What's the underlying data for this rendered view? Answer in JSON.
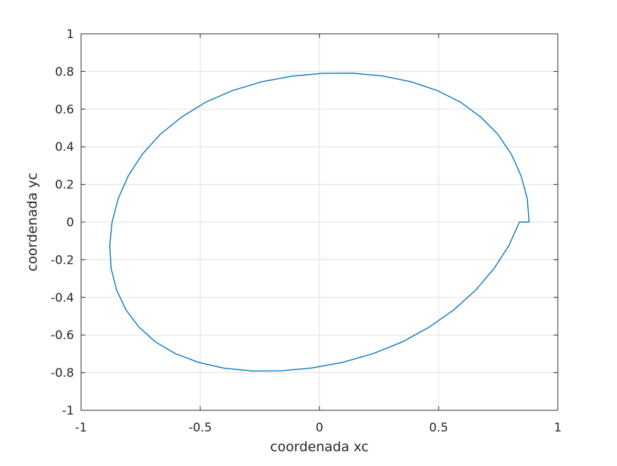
{
  "chart_data": {
    "type": "line",
    "title": "",
    "xlabel": "coordenada xc",
    "ylabel": "coordenada yc",
    "xlim": [
      -1,
      1
    ],
    "ylim": [
      -1,
      1
    ],
    "xticks": [
      -1,
      -0.5,
      0,
      0.5,
      1
    ],
    "xtick_labels": [
      "-1",
      "-0.5",
      "0",
      "0.5",
      "1"
    ],
    "yticks": [
      -1,
      -0.8,
      -0.6,
      -0.4,
      -0.2,
      0,
      0.2,
      0.4,
      0.6,
      0.8,
      1
    ],
    "ytick_labels": [
      "-1",
      "-0.8",
      "-0.6",
      "-0.4",
      "-0.2",
      "0",
      "0.2",
      "0.4",
      "0.6",
      "0.8",
      "1"
    ],
    "grid": true,
    "box": true,
    "series": [
      {
        "color": "#0072bd",
        "x": [
          0.88,
          0.872,
          0.846,
          0.805,
          0.749,
          0.677,
          0.592,
          0.494,
          0.385,
          0.266,
          0.14,
          0.012,
          -0.117,
          -0.243,
          -0.364,
          -0.477,
          -0.578,
          -0.668,
          -0.743,
          -0.802,
          -0.844,
          -0.87,
          -0.88,
          -0.874,
          -0.851,
          -0.812,
          -0.757,
          -0.688,
          -0.604,
          -0.508,
          -0.401,
          -0.284,
          -0.16,
          -0.031,
          0.098,
          0.225,
          0.347,
          0.461,
          0.564,
          0.656,
          0.733,
          0.795,
          0.839,
          0.867,
          0.88
        ],
        "y": [
          0.0,
          0.125,
          0.246,
          0.361,
          0.466,
          0.558,
          0.637,
          0.699,
          0.745,
          0.776,
          0.791,
          0.79,
          0.775,
          0.745,
          0.699,
          0.637,
          0.558,
          0.466,
          0.361,
          0.246,
          0.125,
          0.0,
          -0.125,
          -0.246,
          -0.361,
          -0.466,
          -0.558,
          -0.637,
          -0.699,
          -0.745,
          -0.776,
          -0.791,
          -0.79,
          -0.775,
          -0.745,
          -0.699,
          -0.637,
          -0.558,
          -0.466,
          -0.361,
          -0.246,
          -0.125,
          0.0,
          0.0,
          0.0
        ]
      }
    ]
  }
}
